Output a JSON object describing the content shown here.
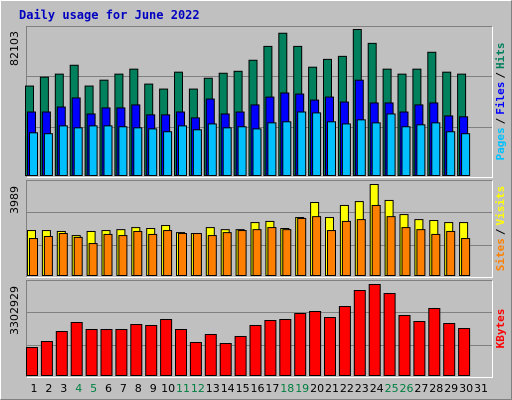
{
  "chart_data": [
    {
      "type": "bar",
      "title": "Daily usage for June 2022",
      "categories": [
        1,
        2,
        3,
        4,
        5,
        6,
        7,
        8,
        9,
        10,
        11,
        12,
        13,
        14,
        15,
        16,
        17,
        18,
        19,
        20,
        21,
        22,
        23,
        24,
        25,
        26,
        27,
        28,
        29,
        30,
        31
      ],
      "category_colors": [
        "#000000",
        "#000000",
        "#000000",
        "#008040",
        "#008040",
        "#000000",
        "#000000",
        "#000000",
        "#000000",
        "#000000",
        "#008040",
        "#008040",
        "#000000",
        "#000000",
        "#000000",
        "#000000",
        "#000000",
        "#008040",
        "#008040",
        "#000000",
        "#000000",
        "#000000",
        "#000000",
        "#000000",
        "#008040",
        "#008040",
        "#000000",
        "#000000",
        "#000000",
        "#000000",
        "#000000"
      ],
      "legend_separator": "/",
      "ylim": [
        0,
        82103
      ],
      "yticks": [
        82103
      ],
      "grid": true,
      "series": [
        {
          "name": "Hits",
          "color": "#00805c",
          "values": [
            50300,
            55300,
            57000,
            62000,
            50300,
            53600,
            57000,
            59800,
            51400,
            48600,
            58100,
            48600,
            54700,
            57500,
            58600,
            64800,
            72600,
            80000,
            72600,
            60900,
            65300,
            67000,
            82103,
            74300,
            59800,
            57000,
            59800,
            69300,
            58100,
            57000,
            null
          ]
        },
        {
          "name": "Files",
          "color": "#0000ff",
          "values": [
            35700,
            35700,
            38500,
            43600,
            34600,
            38000,
            38000,
            39700,
            34100,
            34100,
            35700,
            32400,
            43000,
            34600,
            35700,
            39700,
            44100,
            46400,
            45800,
            42400,
            44100,
            41300,
            53600,
            40800,
            40800,
            35700,
            39700,
            40800,
            33500,
            33000,
            null
          ]
        },
        {
          "name": "Pages",
          "color": "#00c0ff",
          "values": [
            24000,
            23500,
            27900,
            26800,
            27900,
            27900,
            27400,
            26800,
            26200,
            24600,
            27900,
            25700,
            29000,
            26800,
            27400,
            26200,
            29600,
            30200,
            35700,
            35200,
            30200,
            29000,
            31300,
            29600,
            34600,
            27400,
            28500,
            29600,
            24600,
            23500,
            null
          ]
        }
      ]
    },
    {
      "type": "bar",
      "legend_separator": "/",
      "ylim": [
        0,
        3989
      ],
      "yticks": [
        3989
      ],
      "grid": true,
      "series": [
        {
          "name": "Visits",
          "color": "#ffff00",
          "values": [
            1970,
            1970,
            1930,
            1750,
            1930,
            1970,
            2010,
            2100,
            2060,
            2190,
            1880,
            1840,
            2100,
            2010,
            2010,
            2320,
            2370,
            2060,
            2540,
            3200,
            2540,
            3070,
            3240,
            3989,
            3290,
            2670,
            2450,
            2410,
            2320,
            2320,
            null
          ]
        },
        {
          "name": "Sites",
          "color": "#ff8000",
          "values": [
            1620,
            1710,
            1840,
            1670,
            1400,
            1800,
            1750,
            1930,
            1800,
            1970,
            1840,
            1840,
            1750,
            1880,
            1970,
            2010,
            2100,
            2010,
            2500,
            2580,
            1970,
            2370,
            2450,
            3070,
            2580,
            2100,
            2010,
            1800,
            1930,
            1620,
            null
          ]
        }
      ]
    },
    {
      "type": "bar",
      "ylim": [
        0,
        3302929
      ],
      "yticks": [
        3302929
      ],
      "grid": true,
      "series": [
        {
          "name": "KBytes",
          "color": "#ff0000",
          "values": [
            1016000,
            1234000,
            1597000,
            1924000,
            1670000,
            1670000,
            1670000,
            1851000,
            1815000,
            2033000,
            1670000,
            1198000,
            1488000,
            1161000,
            1416000,
            1815000,
            1996000,
            2033000,
            2250000,
            2323000,
            2105000,
            2504000,
            3085000,
            3302929,
            2976000,
            2178000,
            1960000,
            2432000,
            1887000,
            1706000,
            null
          ]
        }
      ]
    }
  ]
}
